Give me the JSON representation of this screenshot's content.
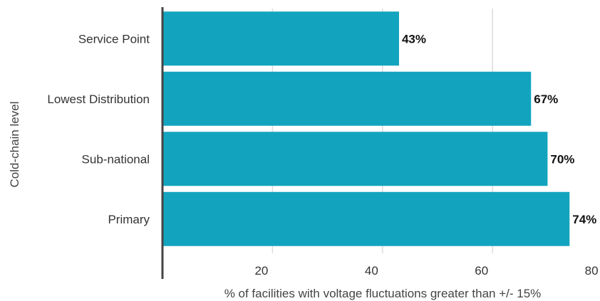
{
  "chart_data": {
    "type": "bar",
    "orientation": "horizontal",
    "categories": [
      "Service Point",
      "Lowest Distribution",
      "Sub-national",
      "Primary"
    ],
    "values": [
      43,
      67,
      70,
      74
    ],
    "data_labels": [
      "43%",
      "67%",
      "70%",
      "74%"
    ],
    "xlabel": "% of facilities with voltage fluctuations greater than +/- 15%",
    "ylabel": "Cold-chain level",
    "xticks": [
      "20",
      "40",
      "60",
      "80"
    ],
    "xlim": [
      0,
      80
    ],
    "grid": "vertical",
    "bar_color": "#12a4bf"
  }
}
